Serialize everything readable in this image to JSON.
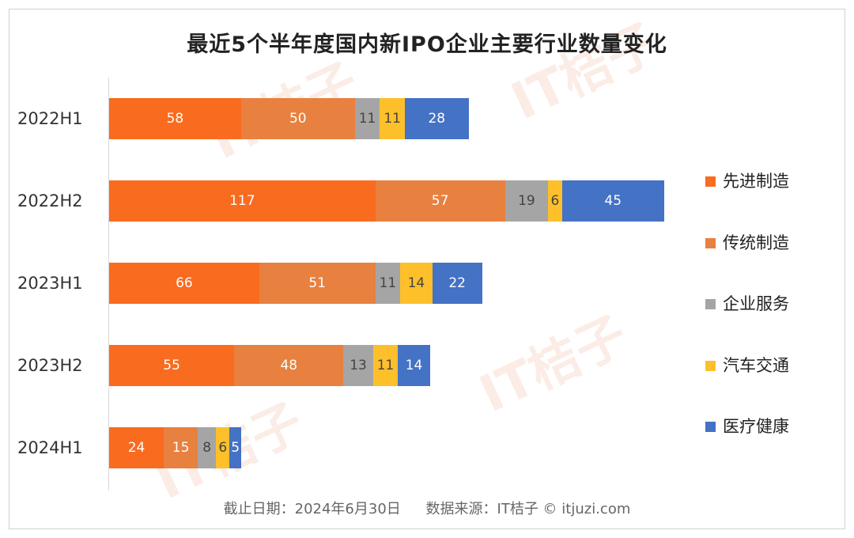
{
  "chart_data": {
    "type": "bar",
    "orientation": "horizontal",
    "stacked": true,
    "title": "最近5个半年度国内新IPO企业主要行业数量变化",
    "categories": [
      "2022H1",
      "2022H2",
      "2023H1",
      "2023H2",
      "2024H1"
    ],
    "series": [
      {
        "name": "先进制造",
        "color": "#F96B1F",
        "values": [
          58,
          117,
          66,
          55,
          24
        ]
      },
      {
        "name": "传统制造",
        "color": "#E8803F",
        "values": [
          50,
          57,
          51,
          48,
          15
        ]
      },
      {
        "name": "企业服务",
        "color": "#A5A5A5",
        "values": [
          11,
          19,
          11,
          13,
          8
        ]
      },
      {
        "name": "汽车交通",
        "color": "#FDC02A",
        "values": [
          11,
          6,
          14,
          11,
          6
        ]
      },
      {
        "name": "医疗健康",
        "color": "#4472C4",
        "values": [
          28,
          45,
          22,
          14,
          5
        ]
      }
    ],
    "xlim": [
      0,
      245
    ],
    "legend_position": "right",
    "grid": false
  },
  "footer": {
    "date_text": "截止日期：2024年6月30日",
    "source_text": "数据来源：IT桔子 © itjuzi.com"
  },
  "watermark": {
    "text": "IT桔子",
    "url": "ITJUZI.COM"
  }
}
